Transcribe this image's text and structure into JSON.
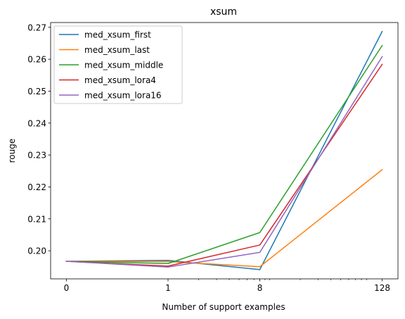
{
  "chart_data": {
    "type": "line",
    "title": "xsum",
    "xlabel": "Number of support examples",
    "ylabel": "rouge",
    "x_scale": "symlog",
    "x": [
      0,
      1,
      8,
      128
    ],
    "x_tick_labels": [
      "0",
      "1",
      "8",
      "128"
    ],
    "ylim": [
      0.1912,
      0.2715
    ],
    "y_ticks": [
      0.2,
      0.21,
      0.22,
      0.23,
      0.24,
      0.25,
      0.26,
      0.27
    ],
    "y_tick_labels": [
      "0.20",
      "0.21",
      "0.22",
      "0.23",
      "0.24",
      "0.25",
      "0.26",
      "0.27"
    ],
    "grid": false,
    "legend_position": "top-left",
    "series": [
      {
        "name": "med_xsum_first",
        "color": "#1f77b4",
        "values": [
          0.1967,
          0.197,
          0.1941,
          0.2687
        ]
      },
      {
        "name": "med_xsum_last",
        "color": "#ff7f0e",
        "values": [
          0.1967,
          0.1966,
          0.195,
          0.2254
        ]
      },
      {
        "name": "med_xsum_middle",
        "color": "#2ca02c",
        "values": [
          0.1967,
          0.196,
          0.2057,
          0.2643
        ]
      },
      {
        "name": "med_xsum_lora4",
        "color": "#d62728",
        "values": [
          0.1967,
          0.1952,
          0.2018,
          0.2584
        ]
      },
      {
        "name": "med_xsum_lora16",
        "color": "#9467bd",
        "values": [
          0.1967,
          0.1949,
          0.1995,
          0.2608
        ]
      }
    ]
  }
}
